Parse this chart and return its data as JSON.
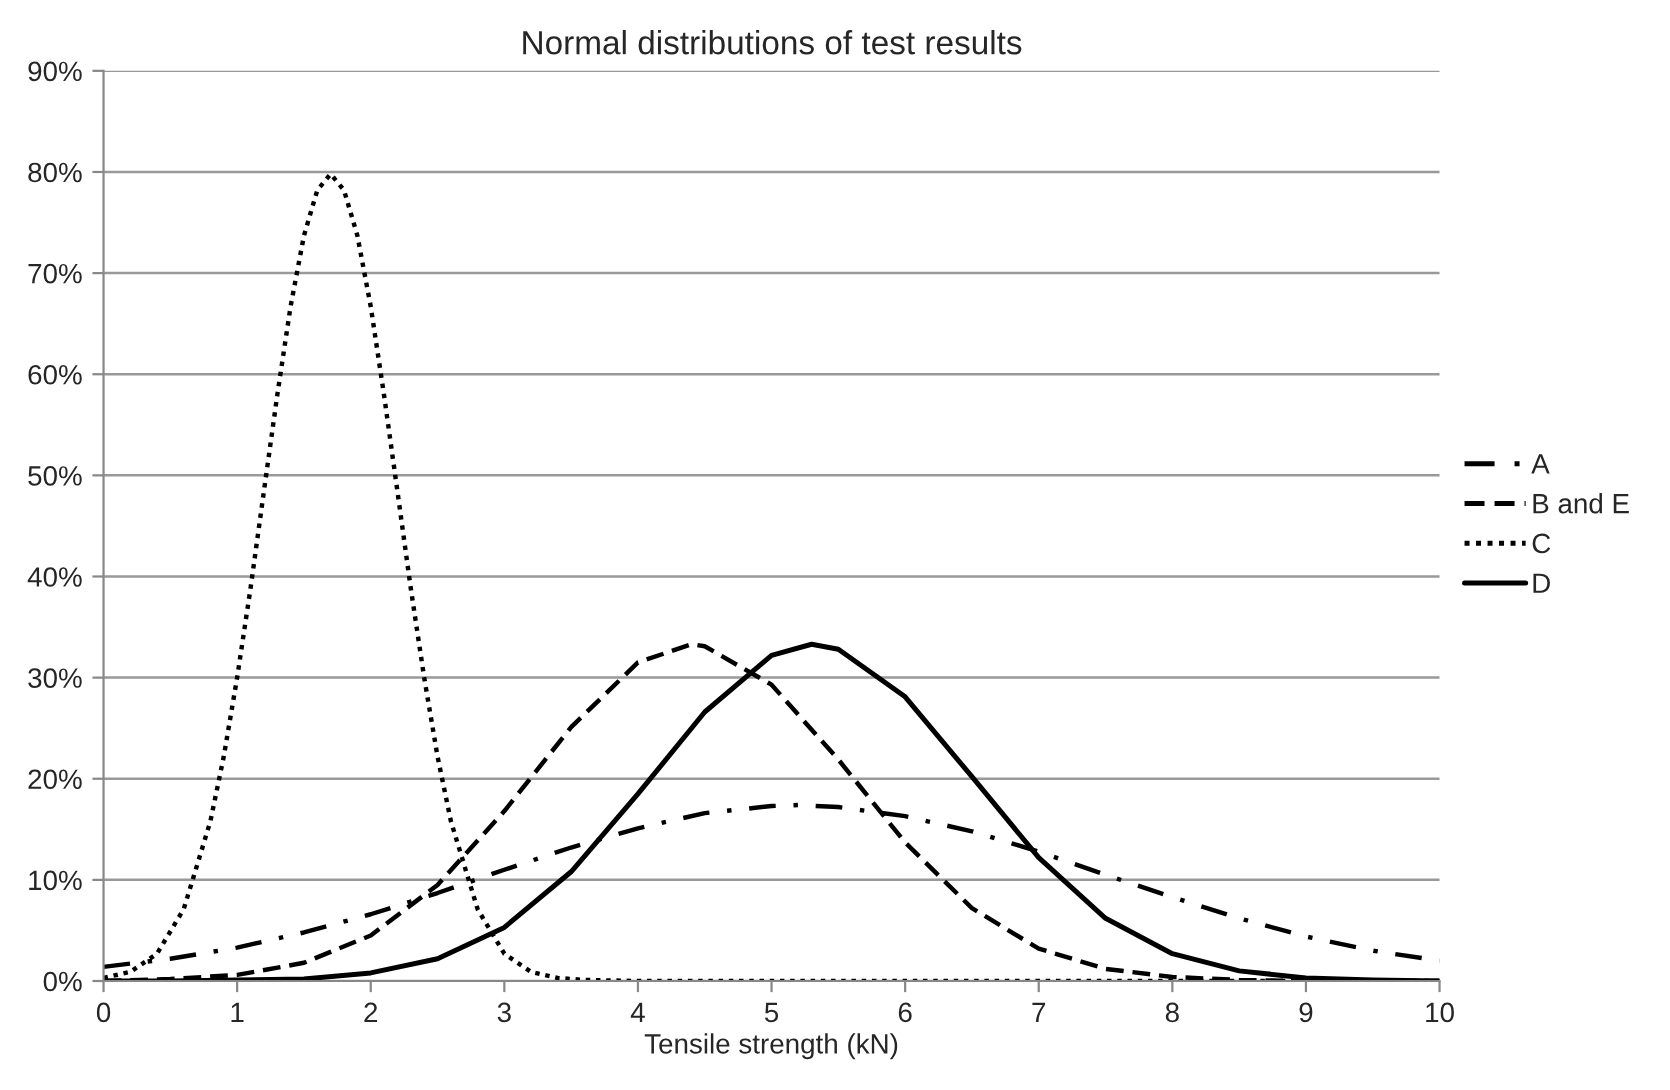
{
  "chart_data": {
    "type": "line",
    "title": "Normal distributions of test results",
    "xlabel": "Tensile strength (kN)",
    "xlim": [
      0,
      10
    ],
    "xticks": [
      0,
      1,
      2,
      3,
      4,
      5,
      6,
      7,
      8,
      9,
      10
    ],
    "ylim": [
      0,
      90
    ],
    "yticks": [
      {
        "value": 0,
        "label": "0%"
      },
      {
        "value": 10,
        "label": "10%"
      },
      {
        "value": 20,
        "label": "20%"
      },
      {
        "value": 30,
        "label": "30%"
      },
      {
        "value": 40,
        "label": "40%"
      },
      {
        "value": 50,
        "label": "50%"
      },
      {
        "value": 60,
        "label": "60%"
      },
      {
        "value": 70,
        "label": "70%"
      },
      {
        "value": 80,
        "label": "80%"
      },
      {
        "value": 90,
        "label": "90%"
      }
    ],
    "grid": "y",
    "legend": "right",
    "marker": "none",
    "series": [
      {
        "name": "A",
        "color": "#000000",
        "line_style": "dashdot",
        "x": [
          0,
          0.5,
          1,
          1.5,
          2,
          2.5,
          3,
          3.5,
          4,
          4.5,
          5,
          5.2,
          5.5,
          6,
          6.5,
          7,
          7.5,
          8,
          8.5,
          9,
          9.5,
          10
        ],
        "values": [
          1.4,
          2.2,
          3.3,
          4.8,
          6.6,
          8.7,
          11.0,
          13.2,
          15.1,
          16.6,
          17.3,
          17.4,
          17.2,
          16.3,
          14.8,
          12.8,
          10.5,
          8.3,
          6.2,
          4.4,
          3.0,
          2.0
        ]
      },
      {
        "name": "B and E",
        "color": "#000000",
        "line_style": "dashed",
        "x": [
          0,
          0.5,
          1,
          1.5,
          2,
          2.5,
          3,
          3.5,
          4,
          4.4,
          4.5,
          5,
          5.5,
          6,
          6.5,
          7,
          7.5,
          8,
          8.5,
          9,
          9.5,
          10
        ],
        "values": [
          0,
          0.2,
          0.6,
          1.8,
          4.5,
          9.5,
          16.8,
          25.1,
          31.5,
          33.3,
          33.1,
          29.3,
          21.9,
          13.7,
          7.2,
          3.2,
          1.2,
          0.4,
          0.1,
          0,
          0,
          0
        ]
      },
      {
        "name": "C",
        "color": "#000000",
        "line_style": "dotted",
        "x": [
          0,
          0.2,
          0.4,
          0.6,
          0.8,
          0.9,
          1,
          1.1,
          1.2,
          1.3,
          1.4,
          1.5,
          1.6,
          1.7,
          1.8,
          1.9,
          2,
          2.1,
          2.2,
          2.3,
          2.4,
          2.5,
          2.6,
          2.8,
          3,
          3.2,
          3.4,
          3.6,
          4,
          5,
          6,
          7,
          8,
          9,
          10
        ],
        "values": [
          0.3,
          0.9,
          2.7,
          7.1,
          15.8,
          22.2,
          30.0,
          38.8,
          48.4,
          57.9,
          66.7,
          73.7,
          78.2,
          79.8,
          78.2,
          73.7,
          66.7,
          57.9,
          48.4,
          38.8,
          30.0,
          22.2,
          15.8,
          7.1,
          2.7,
          0.9,
          0.3,
          0.1,
          0,
          0,
          0,
          0,
          0,
          0,
          0
        ]
      },
      {
        "name": "D",
        "color": "#000000",
        "line_style": "solid",
        "x": [
          0,
          0.5,
          1,
          1.5,
          2,
          2.5,
          3,
          3.5,
          4,
          4.5,
          5,
          5.3,
          5.5,
          6,
          6.5,
          7,
          7.5,
          8,
          8.5,
          9,
          9.5,
          10
        ],
        "values": [
          0,
          0,
          0.1,
          0.2,
          0.8,
          2.2,
          5.3,
          10.8,
          18.5,
          26.6,
          32.2,
          33.3,
          32.8,
          28.1,
          20.2,
          12.2,
          6.2,
          2.7,
          1.0,
          0.3,
          0.1,
          0
        ]
      }
    ]
  }
}
